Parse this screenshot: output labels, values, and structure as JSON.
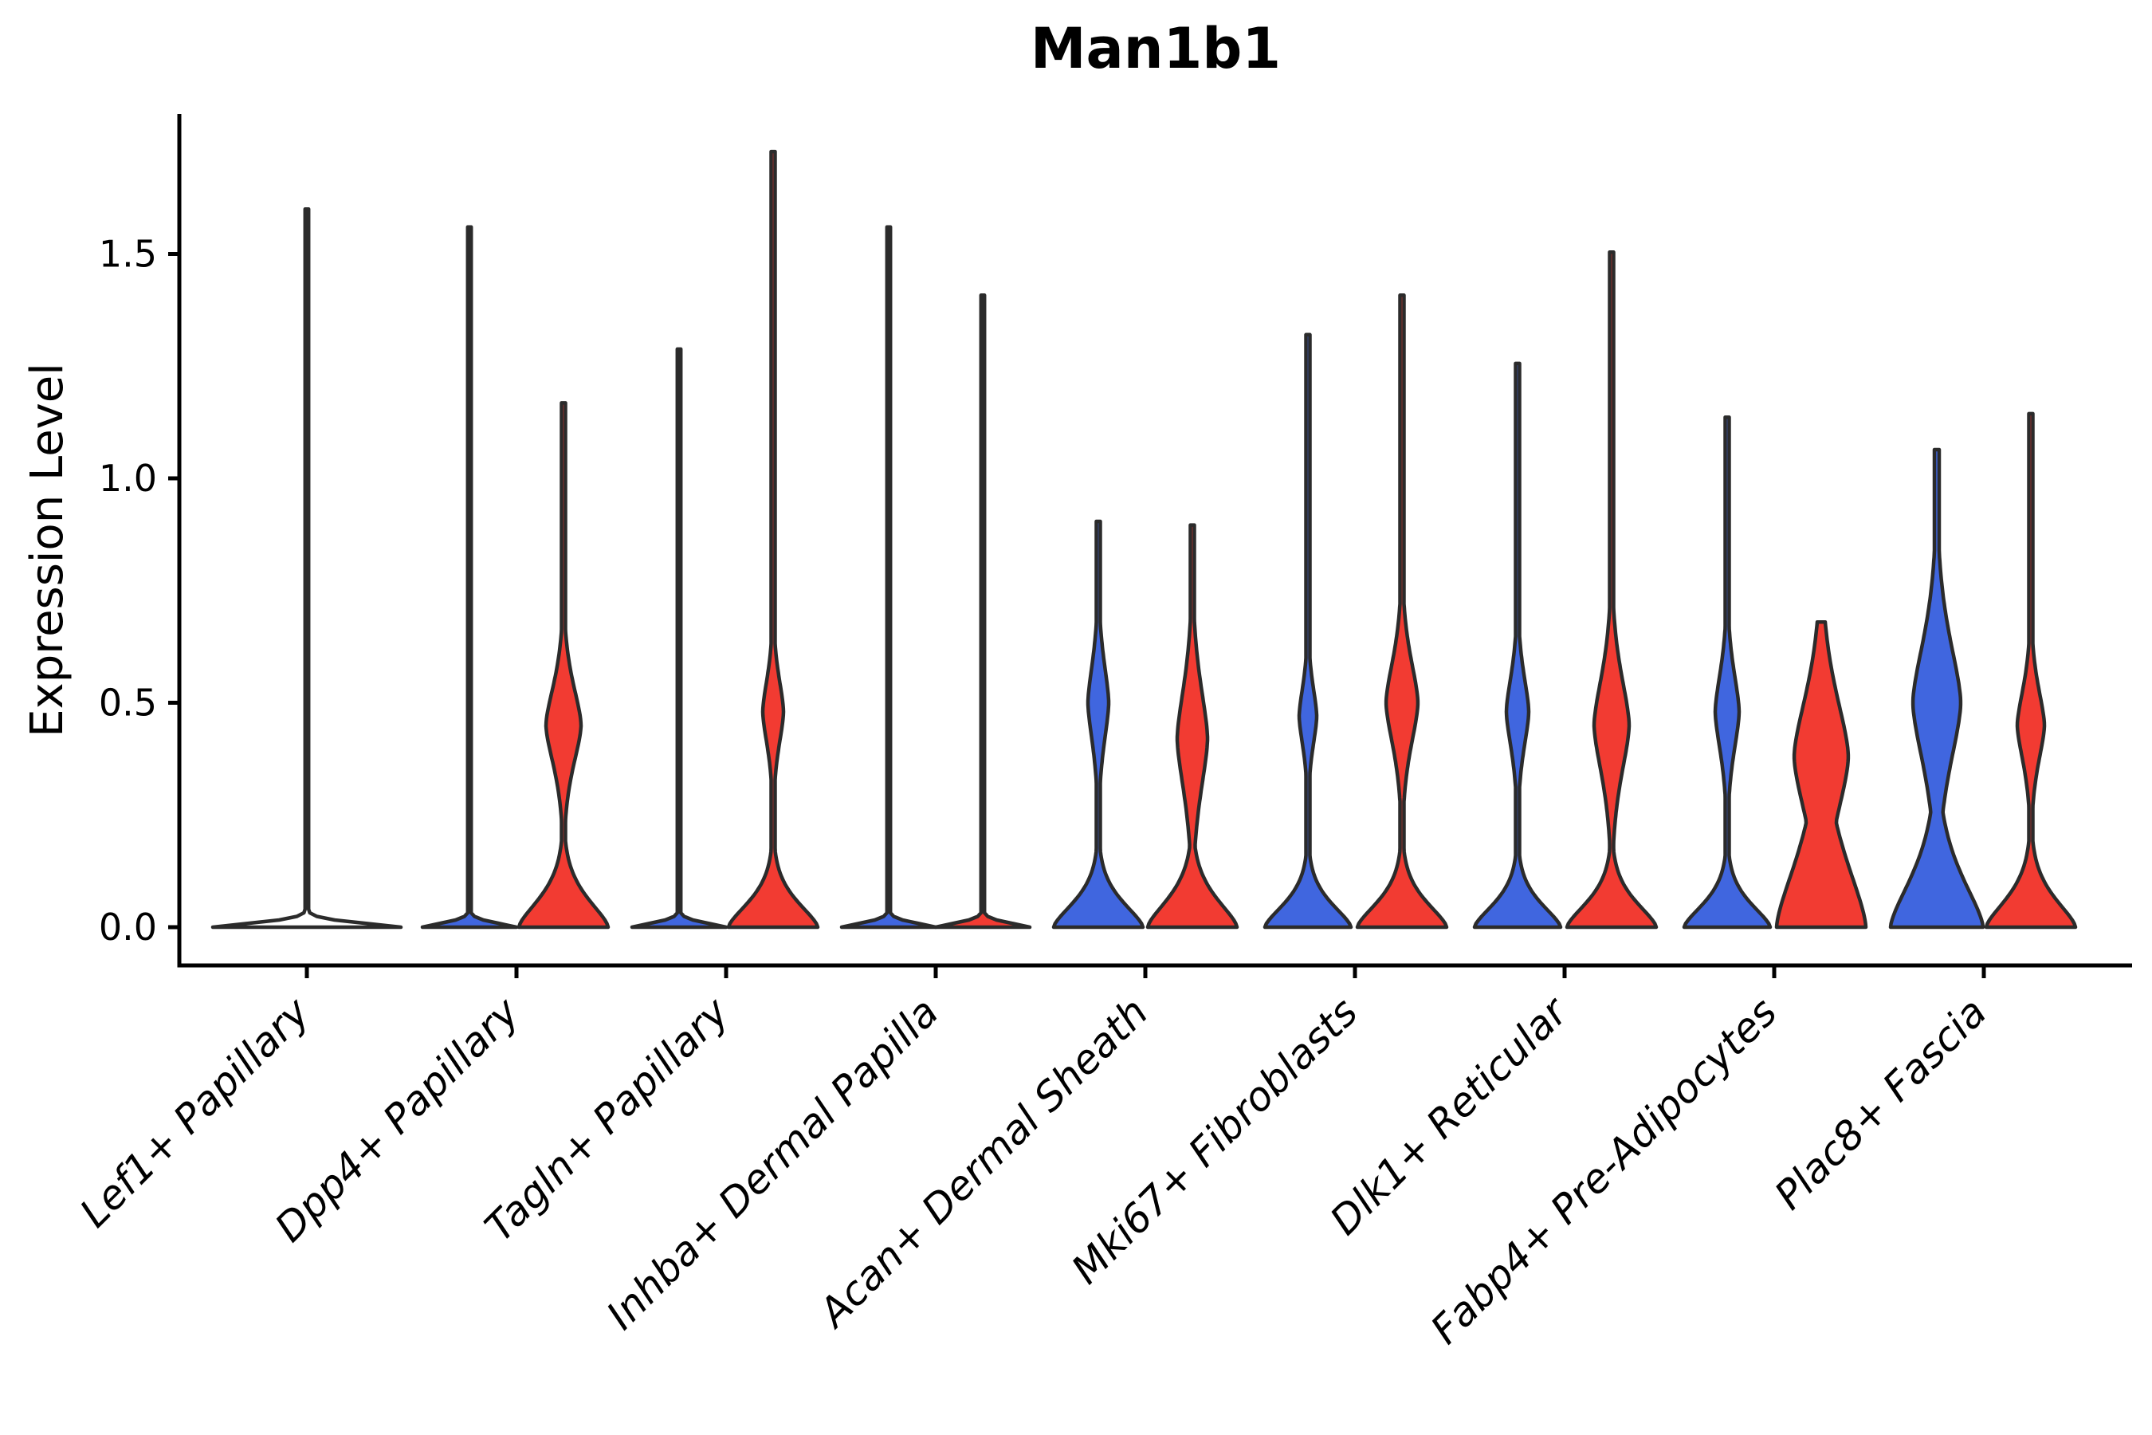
{
  "title": "Man1b1",
  "axes": {
    "ylabel": "Expression Level",
    "ytick_labels": [
      "0.0",
      "0.5",
      "1.0",
      "1.5"
    ],
    "ytick_values": [
      0.0,
      0.5,
      1.0,
      1.5
    ],
    "ylim": [
      -0.09,
      1.81
    ],
    "xtick_rotation_deg": 45
  },
  "colors": {
    "blue_fill": "#4066DF",
    "red_fill": "#F23B32",
    "outline": "#2B2B2B",
    "axis": "#000000",
    "background": "#ffffff"
  },
  "chart_data": {
    "type": "violin",
    "title": "Man1b1",
    "ylabel": "Expression Level",
    "ylim": [
      -0.09,
      1.81
    ],
    "yticks": [
      0.0,
      0.5,
      1.0,
      1.5
    ],
    "legend": "none (split violin pairs: blue = left condition, red = right condition)",
    "categories": [
      "Lef1+ Papillary",
      "Dpp4+ Papillary",
      "Tagln+ Papillary",
      "Inhba+ Dermal Papilla",
      "Acan+ Dermal Sheath",
      "Mki67+ Fibroblasts",
      "Dlk1+ Reticular",
      "Fabp4+ Pre-Adipocytes",
      "Plac8+ Fascia"
    ],
    "max_expression": {
      "Lef1+ Papillary": {
        "single": 1.6
      },
      "Dpp4+ Papillary": {
        "blue": 1.56,
        "red": 1.17
      },
      "Tagln+ Papillary": {
        "blue": 1.29,
        "red": 1.73
      },
      "Inhba+ Dermal Papilla": {
        "blue": 1.56,
        "red": 1.41
      },
      "Acan+ Dermal Sheath": {
        "blue": 0.91,
        "red": 0.9
      },
      "Mki67+ Fibroblasts": {
        "blue": 1.32,
        "red": 1.41
      },
      "Dlk1+ Reticular": {
        "blue": 1.26,
        "red": 1.51
      },
      "Fabp4+ Pre-Adipocytes": {
        "blue": 1.14,
        "red": 0.68
      },
      "Plac8+ Fascia": {
        "blue": 1.07,
        "red": 1.15
      }
    },
    "violins": [
      {
        "cat": 0,
        "side": "center",
        "color": "none",
        "max": 1.6,
        "shape": {
          "base_w": 118,
          "base_decay": 0.014,
          "bulge_w": 0,
          "bulge_c": 0,
          "bulge_s": 1,
          "spike_w": 2.2
        }
      },
      {
        "cat": 1,
        "side": "left",
        "color": "blue",
        "max": 1.56,
        "shape": {
          "base_w": 59,
          "base_decay": 0.014,
          "bulge_w": 0,
          "bulge_c": 0,
          "bulge_s": 1,
          "spike_w": 2.2
        }
      },
      {
        "cat": 1,
        "side": "right",
        "color": "red",
        "max": 1.17,
        "shape": {
          "base_w": 56,
          "base_decay": 0.09,
          "bulge_w": 22,
          "bulge_c": 0.45,
          "bulge_s": 0.13,
          "spike_w": 2.5
        }
      },
      {
        "cat": 2,
        "side": "left",
        "color": "blue",
        "max": 1.29,
        "shape": {
          "base_w": 59,
          "base_decay": 0.014,
          "bulge_w": 0,
          "bulge_c": 0,
          "bulge_s": 1,
          "spike_w": 2.2
        }
      },
      {
        "cat": 2,
        "side": "right",
        "color": "red",
        "max": 1.73,
        "shape": {
          "base_w": 56,
          "base_decay": 0.08,
          "bulge_w": 13,
          "bulge_c": 0.48,
          "bulge_s": 0.11,
          "spike_w": 2.5
        }
      },
      {
        "cat": 3,
        "side": "left",
        "color": "blue",
        "max": 1.56,
        "shape": {
          "base_w": 59,
          "base_decay": 0.014,
          "bulge_w": 0,
          "bulge_c": 0,
          "bulge_s": 1,
          "spike_w": 2.2
        }
      },
      {
        "cat": 3,
        "side": "right",
        "color": "red",
        "max": 1.41,
        "shape": {
          "base_w": 59,
          "base_decay": 0.014,
          "bulge_w": 0,
          "bulge_c": 0,
          "bulge_s": 1,
          "spike_w": 2.2
        }
      },
      {
        "cat": 4,
        "side": "left",
        "color": "blue",
        "max": 0.91,
        "shape": {
          "base_w": 56,
          "base_decay": 0.08,
          "bulge_w": 13,
          "bulge_c": 0.5,
          "bulge_s": 0.13,
          "spike_w": 2.5
        }
      },
      {
        "cat": 4,
        "side": "right",
        "color": "red",
        "max": 0.9,
        "shape": {
          "base_w": 56,
          "base_decay": 0.09,
          "bulge_w": 19,
          "bulge_c": 0.42,
          "bulge_s": 0.17,
          "spike_w": 2.5
        }
      },
      {
        "cat": 5,
        "side": "left",
        "color": "blue",
        "max": 1.32,
        "shape": {
          "base_w": 54,
          "base_decay": 0.075,
          "bulge_w": 11,
          "bulge_c": 0.47,
          "bulge_s": 0.1,
          "spike_w": 2.5
        }
      },
      {
        "cat": 5,
        "side": "right",
        "color": "red",
        "max": 1.41,
        "shape": {
          "base_w": 56,
          "base_decay": 0.08,
          "bulge_w": 20,
          "bulge_c": 0.5,
          "bulge_s": 0.14,
          "spike_w": 2.5
        }
      },
      {
        "cat": 6,
        "side": "left",
        "color": "blue",
        "max": 1.26,
        "shape": {
          "base_w": 54,
          "base_decay": 0.075,
          "bulge_w": 14,
          "bulge_c": 0.48,
          "bulge_s": 0.12,
          "spike_w": 2.5
        }
      },
      {
        "cat": 6,
        "side": "right",
        "color": "red",
        "max": 1.51,
        "shape": {
          "base_w": 56,
          "base_decay": 0.08,
          "bulge_w": 22,
          "bulge_c": 0.45,
          "bulge_s": 0.16,
          "spike_w": 2.5
        }
      },
      {
        "cat": 7,
        "side": "left",
        "color": "blue",
        "max": 1.14,
        "shape": {
          "base_w": 54,
          "base_decay": 0.075,
          "bulge_w": 15,
          "bulge_c": 0.48,
          "bulge_s": 0.13,
          "spike_w": 2.5
        }
      },
      {
        "cat": 7,
        "side": "right",
        "color": "red",
        "max": 0.68,
        "shape": {
          "base_w": 56,
          "base_decay": 0.22,
          "bulge_w": 34,
          "bulge_c": 0.38,
          "bulge_s": 0.2,
          "spike_w": 3.0
        }
      },
      {
        "cat": 8,
        "side": "left",
        "color": "blue",
        "max": 1.07,
        "shape": {
          "base_w": 58,
          "base_decay": 0.16,
          "bulge_w": 30,
          "bulge_c": 0.5,
          "bulge_s": 0.2,
          "spike_w": 3.0
        }
      },
      {
        "cat": 8,
        "side": "right",
        "color": "red",
        "max": 1.15,
        "shape": {
          "base_w": 56,
          "base_decay": 0.09,
          "bulge_w": 17,
          "bulge_c": 0.45,
          "bulge_s": 0.12,
          "spike_w": 2.5
        }
      }
    ]
  }
}
